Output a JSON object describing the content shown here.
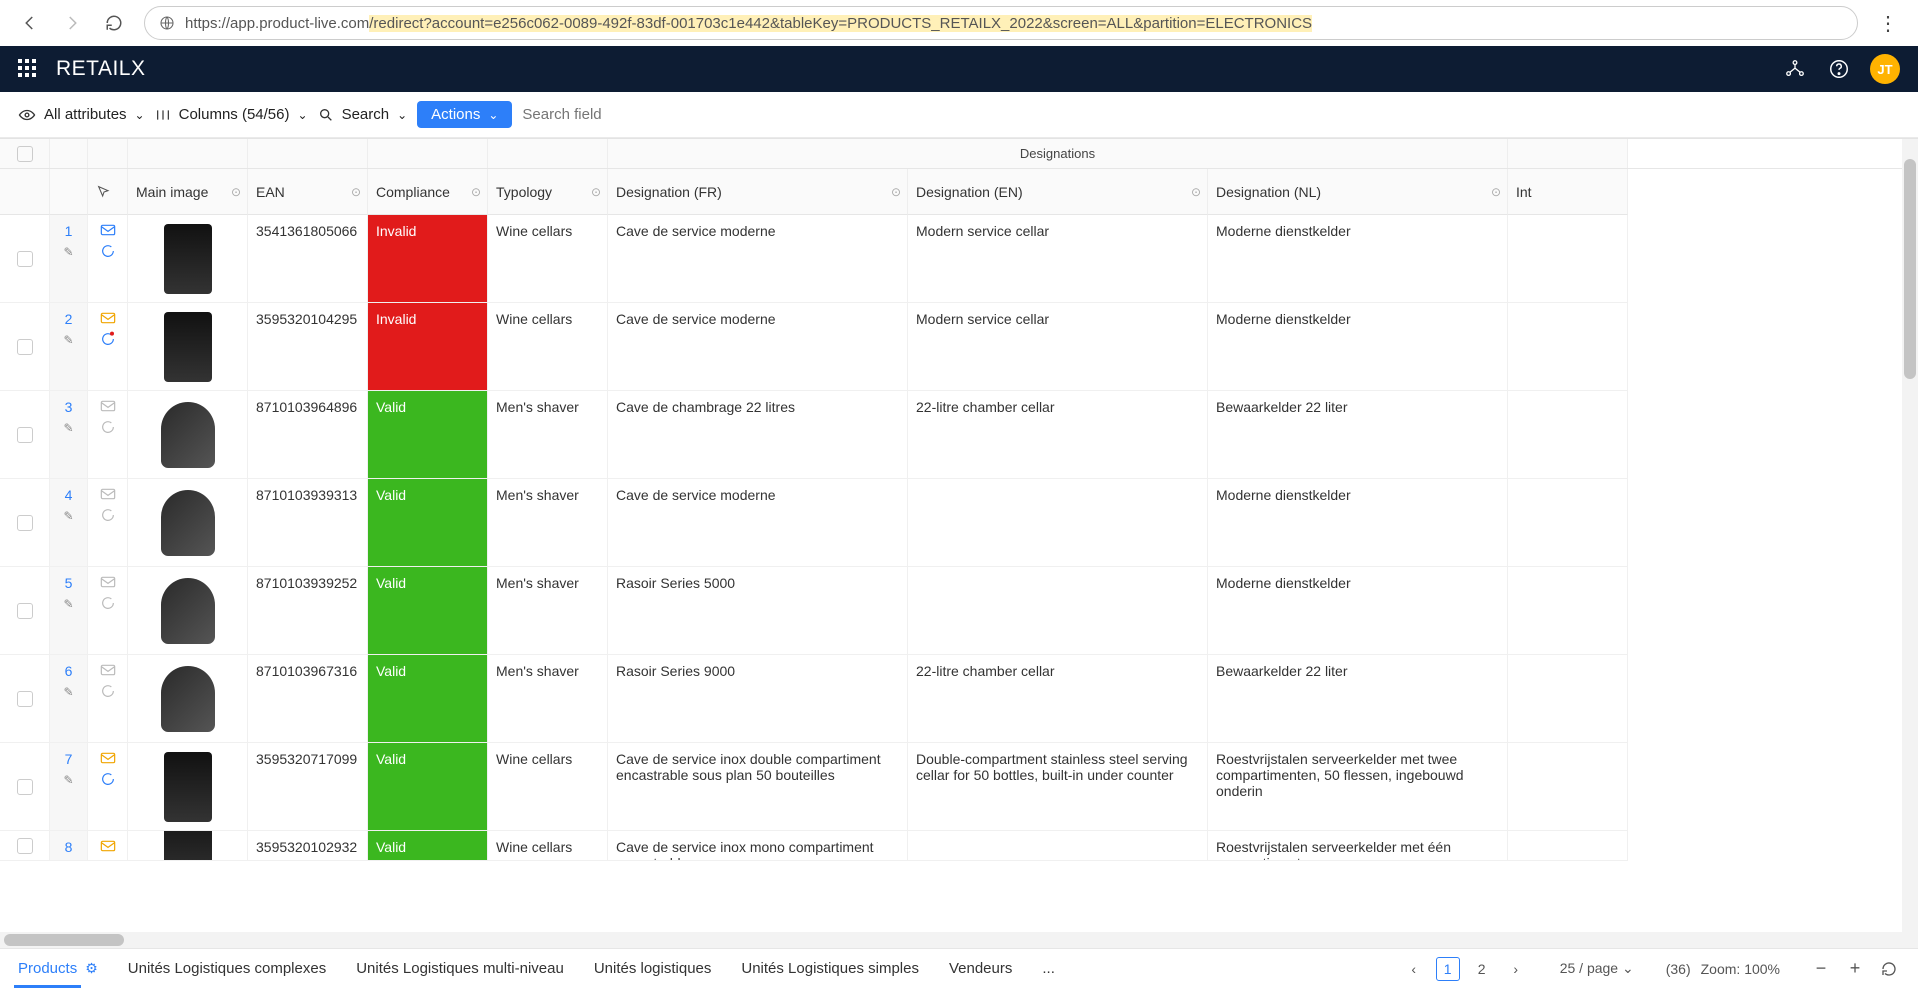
{
  "browser": {
    "url_prefix": "https://app.product-live.com",
    "url_highlight": "/redirect?account=e256c062-0089-492f-83df-001703c1e442&tableKey=PRODUCTS_RETAILX_2022&screen=ALL&partition=ELECTRONICS"
  },
  "app": {
    "brand": "RETAILX",
    "avatar": "JT"
  },
  "toolbar": {
    "attributes_label": "All attributes",
    "columns_label": "Columns (54/56)",
    "search_label": "Search",
    "actions_label": "Actions",
    "search_placeholder": "Search field"
  },
  "table": {
    "group_header": "Designations",
    "columns": {
      "main_image": "Main image",
      "ean": "EAN",
      "compliance": "Compliance",
      "typology": "Typology",
      "designation_fr": "Designation (FR)",
      "designation_en": "Designation (EN)",
      "designation_nl": "Designation (NL)",
      "int": "Int"
    },
    "rows": [
      {
        "n": "1",
        "mail_color": "#2d7ff9",
        "bubble_color": "#2d7ff9",
        "thumb": "wine",
        "ean": "3541361805066",
        "compliance": "Invalid",
        "typology": "Wine cellars",
        "fr": "Cave de service moderne",
        "en": "Modern service cellar",
        "nl": "Moderne dienstkelder"
      },
      {
        "n": "2",
        "mail_color": "#f0a500",
        "bubble_color": "#2d7ff9",
        "bubble_dot": true,
        "thumb": "wine",
        "ean": "3595320104295",
        "compliance": "Invalid",
        "typology": "Wine cellars",
        "fr": "Cave de service moderne",
        "en": "Modern service cellar",
        "nl": "Moderne dienstkelder"
      },
      {
        "n": "3",
        "mail_color": "#bbb",
        "bubble_color": "#bbb",
        "thumb": "shaver",
        "ean": "8710103964896",
        "compliance": "Valid",
        "typology": "Men's shaver",
        "fr": "Cave de chambrage 22 litres",
        "en": "22-litre chamber cellar",
        "nl": "Bewaarkelder 22 liter"
      },
      {
        "n": "4",
        "mail_color": "#bbb",
        "bubble_color": "#bbb",
        "thumb": "shaver",
        "ean": "8710103939313",
        "compliance": "Valid",
        "typology": "Men's shaver",
        "fr": "Cave de service moderne",
        "en": "",
        "nl": "Moderne dienstkelder"
      },
      {
        "n": "5",
        "mail_color": "#bbb",
        "bubble_color": "#bbb",
        "thumb": "shaver",
        "ean": "8710103939252",
        "compliance": "Valid",
        "typology": "Men's shaver",
        "fr": "Rasoir Series 5000",
        "en": "",
        "nl": "Moderne dienstkelder"
      },
      {
        "n": "6",
        "mail_color": "#bbb",
        "bubble_color": "#bbb",
        "thumb": "shaver",
        "ean": "8710103967316",
        "compliance": "Valid",
        "typology": "Men's shaver",
        "fr": "Rasoir Series 9000",
        "en": "22-litre chamber cellar",
        "nl": "Bewaarkelder 22 liter"
      },
      {
        "n": "7",
        "mail_color": "#f0a500",
        "bubble_color": "#2d7ff9",
        "thumb": "wine",
        "ean": "3595320717099",
        "compliance": "Valid",
        "typology": "Wine cellars",
        "fr": "Cave de service inox double compartiment encastrable sous plan 50 bouteilles",
        "en": "Double-compartment stainless steel serving cellar for 50 bottles, built-in under counter",
        "nl": "Roestvrijstalen serveerkelder met twee compartimenten, 50 flessen, ingebouwd onderin"
      },
      {
        "n": "8",
        "mail_color": "#f0a500",
        "bubble_color": "#bbb",
        "thumb": "wine",
        "ean": "3595320102932",
        "compliance": "Valid",
        "typology": "Wine cellars",
        "fr": "Cave de service inox mono compartiment encastrable",
        "en": "",
        "nl": "Roestvrijstalen serveerkelder met één compartiment"
      }
    ]
  },
  "footer": {
    "tabs": [
      "Products",
      "Unités Logistiques complexes",
      "Unités Logistiques multi-niveau",
      "Unités logistiques",
      "Unités Logistiques simples",
      "Vendeurs",
      "..."
    ],
    "active_tab": 0,
    "page_current": "1",
    "page_other": "2",
    "page_size_label": "25 / page",
    "count_label": "(36)",
    "zoom_label": "Zoom: 100%"
  }
}
